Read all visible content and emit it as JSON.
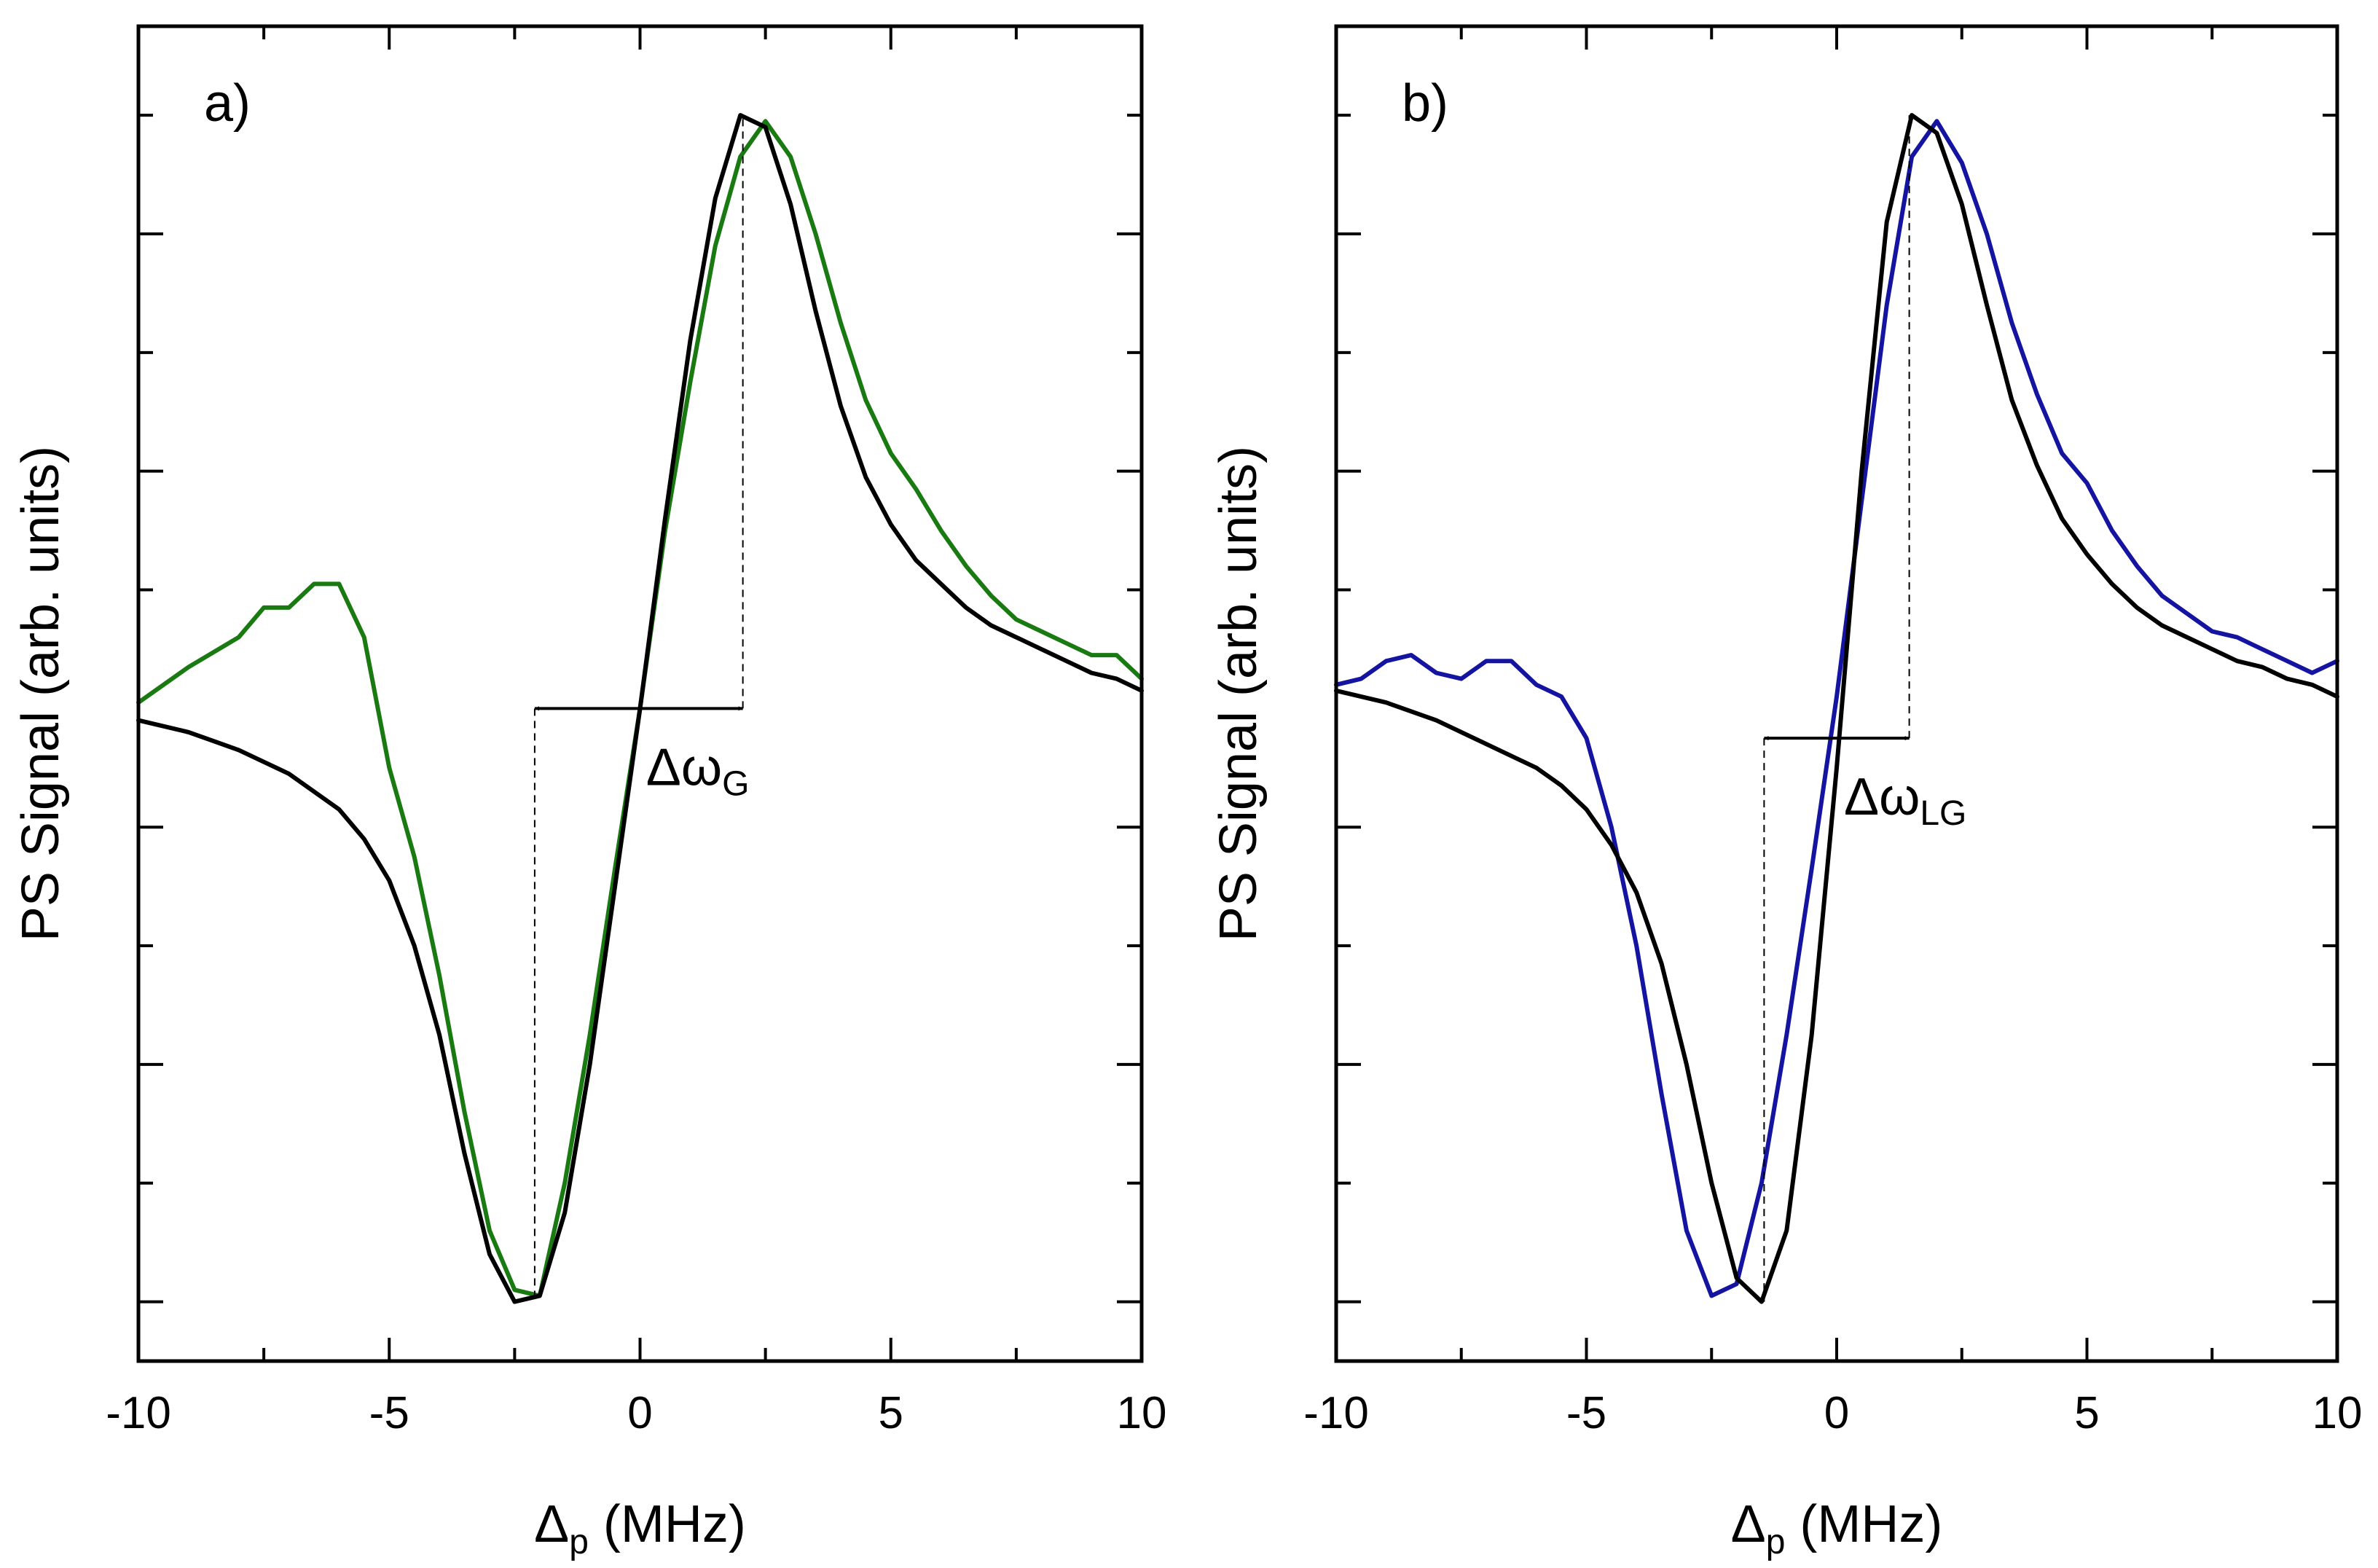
{
  "chart_data": [
    {
      "type": "line",
      "panel_label": "a)",
      "xlabel_main": "Δ",
      "xlabel_sub": "p",
      "xlabel_rest": " (MHz)",
      "ylabel": "PS Signal (arb. units)",
      "xlim": [
        -10,
        10
      ],
      "ylim": [
        -1.1,
        1.15
      ],
      "xticks": [
        -10,
        -5,
        0,
        5,
        10
      ],
      "xtick_labels": [
        "-10",
        "-5",
        "0",
        "5",
        "10"
      ],
      "ytick_values": [
        -1.0,
        -0.8,
        -0.6,
        -0.4,
        -0.2,
        0.2,
        0.4,
        0.6,
        0.8,
        1.0
      ],
      "annotation": {
        "main": "Δω",
        "sub": "G",
        "x_from": -2.1,
        "x_to": 2.05,
        "y": 0.0
      },
      "series": [
        {
          "color": "#1a7a12",
          "x": [
            -10,
            -9,
            -8,
            -7.5,
            -7,
            -6.5,
            -6,
            -5.5,
            -5,
            -4.5,
            -4,
            -3.5,
            -3,
            -2.5,
            -2,
            -1.5,
            -1,
            -0.5,
            0,
            0.5,
            1,
            1.5,
            2,
            2.5,
            3,
            3.5,
            4,
            4.5,
            5,
            5.5,
            6,
            6.5,
            7,
            7.5,
            8,
            8.5,
            9,
            9.5,
            10
          ],
          "y": [
            0.01,
            0.07,
            0.12,
            0.17,
            0.17,
            0.21,
            0.21,
            0.12,
            -0.1,
            -0.25,
            -0.45,
            -0.68,
            -0.88,
            -0.98,
            -0.99,
            -0.8,
            -0.55,
            -0.27,
            0.0,
            0.3,
            0.55,
            0.78,
            0.93,
            0.99,
            0.93,
            0.8,
            0.65,
            0.52,
            0.43,
            0.37,
            0.3,
            0.24,
            0.19,
            0.15,
            0.13,
            0.11,
            0.09,
            0.09,
            0.05
          ]
        },
        {
          "color": "#000000",
          "x": [
            -10,
            -9,
            -8,
            -7,
            -6,
            -5.5,
            -5,
            -4.5,
            -4,
            -3.5,
            -3,
            -2.5,
            -2,
            -1.5,
            -1,
            -0.5,
            0,
            0.5,
            1,
            1.5,
            2,
            2.5,
            3,
            3.5,
            4,
            4.5,
            5,
            5.5,
            6,
            6.5,
            7,
            7.5,
            8,
            8.5,
            9,
            9.5,
            10
          ],
          "y": [
            -0.02,
            -0.04,
            -0.07,
            -0.11,
            -0.17,
            -0.22,
            -0.29,
            -0.4,
            -0.55,
            -0.75,
            -0.92,
            -1.0,
            -0.99,
            -0.85,
            -0.6,
            -0.3,
            0.0,
            0.32,
            0.62,
            0.86,
            1.0,
            0.98,
            0.85,
            0.67,
            0.51,
            0.39,
            0.31,
            0.25,
            0.21,
            0.17,
            0.14,
            0.12,
            0.1,
            0.08,
            0.06,
            0.05,
            0.03
          ]
        }
      ]
    },
    {
      "type": "line",
      "panel_label": "b)",
      "xlabel_main": "Δ",
      "xlabel_sub": "p",
      "xlabel_rest": " (MHz)",
      "ylabel": "PS Signal (arb. units)",
      "xlim": [
        -10,
        10
      ],
      "ylim": [
        -1.1,
        1.15
      ],
      "xticks": [
        -10,
        -5,
        0,
        5,
        10
      ],
      "xtick_labels": [
        "-10",
        "-5",
        "0",
        "5",
        "10"
      ],
      "ytick_values": [
        -1.0,
        -0.8,
        -0.6,
        -0.4,
        -0.2,
        0.2,
        0.4,
        0.6,
        0.8,
        1.0
      ],
      "annotation": {
        "main": "Δω",
        "sub": "LG",
        "x_from": -1.45,
        "x_to": 1.45,
        "y": -0.05
      },
      "series": [
        {
          "color": "#1414a0",
          "x": [
            -10,
            -9.5,
            -9,
            -8.5,
            -8,
            -7.5,
            -7,
            -6.5,
            -6,
            -5.5,
            -5,
            -4.5,
            -4,
            -3.5,
            -3,
            -2.5,
            -2,
            -1.5,
            -1,
            -0.5,
            0,
            0.5,
            1,
            1.5,
            2,
            2.5,
            3,
            3.5,
            4,
            4.5,
            5,
            5.5,
            6,
            6.5,
            7,
            7.5,
            8,
            8.5,
            9,
            9.5,
            10
          ],
          "y": [
            0.04,
            0.05,
            0.08,
            0.09,
            0.06,
            0.05,
            0.08,
            0.08,
            0.04,
            0.02,
            -0.05,
            -0.2,
            -0.4,
            -0.65,
            -0.88,
            -0.99,
            -0.97,
            -0.8,
            -0.55,
            -0.27,
            0.02,
            0.35,
            0.68,
            0.93,
            0.99,
            0.92,
            0.8,
            0.65,
            0.53,
            0.43,
            0.38,
            0.3,
            0.24,
            0.19,
            0.16,
            0.13,
            0.12,
            0.1,
            0.08,
            0.06,
            0.08
          ]
        },
        {
          "color": "#000000",
          "x": [
            -10,
            -9,
            -8,
            -7,
            -6,
            -5.5,
            -5,
            -4.5,
            -4,
            -3.5,
            -3,
            -2.5,
            -2,
            -1.5,
            -1,
            -0.5,
            0,
            0.5,
            1,
            1.5,
            2,
            2.5,
            3,
            3.5,
            4,
            4.5,
            5,
            5.5,
            6,
            6.5,
            7,
            7.5,
            8,
            8.5,
            9,
            9.5,
            10
          ],
          "y": [
            0.03,
            0.01,
            -0.02,
            -0.06,
            -0.1,
            -0.13,
            -0.17,
            -0.23,
            -0.31,
            -0.43,
            -0.6,
            -0.8,
            -0.96,
            -1.0,
            -0.88,
            -0.55,
            -0.1,
            0.4,
            0.82,
            1.0,
            0.97,
            0.85,
            0.68,
            0.52,
            0.41,
            0.32,
            0.26,
            0.21,
            0.17,
            0.14,
            0.12,
            0.1,
            0.08,
            0.07,
            0.05,
            0.04,
            0.02
          ]
        }
      ]
    }
  ]
}
